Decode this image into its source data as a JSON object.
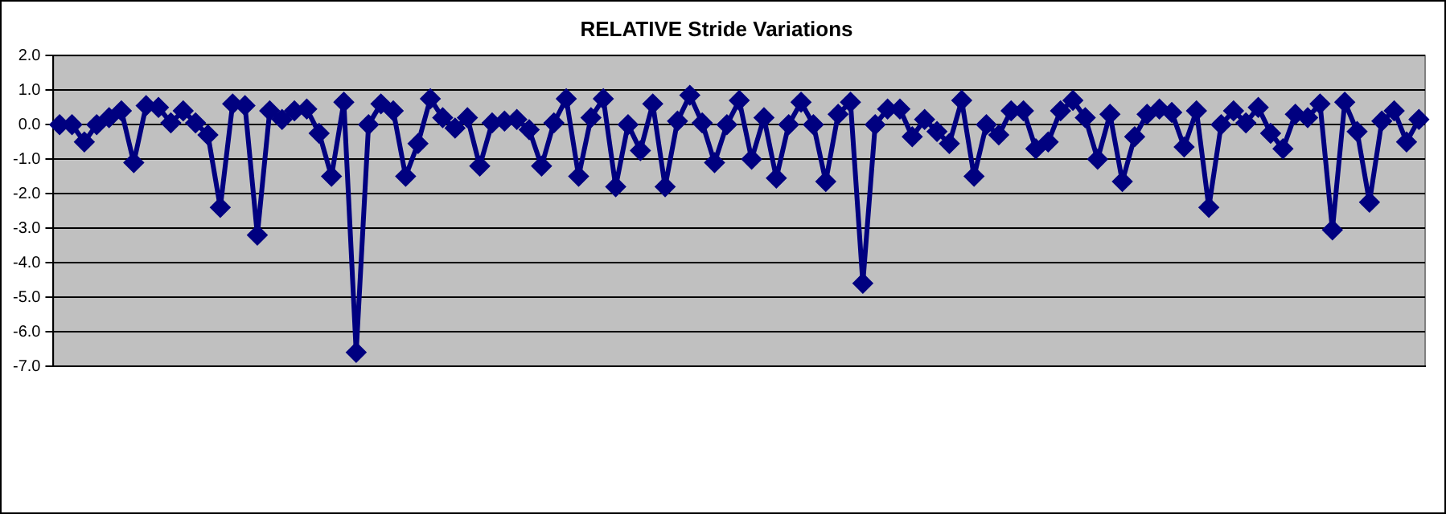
{
  "chart_data": {
    "type": "line",
    "title": "RELATIVE Stride Variations",
    "categories": [
      null,
      null,
      null,
      null,
      null,
      null,
      null,
      null,
      null,
      null,
      null,
      null,
      null,
      null,
      null,
      null,
      null,
      null,
      null,
      null,
      null,
      null,
      null,
      null,
      null,
      null,
      null,
      null,
      null,
      null,
      null,
      null,
      null,
      null,
      null,
      null,
      null,
      null,
      null,
      null,
      null,
      null,
      null,
      null,
      null,
      null,
      null,
      null,
      null,
      null,
      null,
      null,
      null,
      null,
      null,
      null,
      null,
      null,
      null,
      null,
      null,
      null,
      null,
      null,
      null,
      null,
      null,
      null,
      null,
      null,
      null,
      null,
      null,
      null,
      null,
      null,
      null,
      null,
      null,
      null,
      null,
      null,
      null,
      null,
      null,
      null,
      null,
      null,
      null,
      null,
      null,
      null,
      null,
      null,
      null,
      null,
      null,
      null,
      null,
      null,
      null,
      null,
      null,
      null,
      null,
      null,
      null,
      null,
      null,
      null,
      null
    ],
    "series": [
      {
        "color": "#000080",
        "values": [
          0.0,
          0.0,
          -0.5,
          0.0,
          0.2,
          0.4,
          -1.1,
          0.55,
          0.5,
          0.05,
          0.4,
          0.05,
          -0.3,
          -2.4,
          0.6,
          0.55,
          -3.2,
          0.4,
          0.15,
          0.4,
          0.45,
          -0.25,
          -1.5,
          0.65,
          -6.6,
          0.0,
          0.6,
          0.4,
          -1.5,
          -0.55,
          0.75,
          0.2,
          -0.1,
          0.2,
          -1.2,
          0.05,
          0.1,
          0.15,
          -0.15,
          -1.2,
          0.05,
          0.75,
          -1.5,
          0.2,
          0.75,
          -1.8,
          0.0,
          -0.75,
          0.6,
          -1.8,
          0.1,
          0.85,
          0.05,
          -1.1,
          0.0,
          0.7,
          -1.0,
          0.2,
          -1.55,
          0.0,
          0.65,
          0.0,
          -1.65,
          0.3,
          0.65,
          -4.6,
          0.0,
          0.45,
          0.45,
          -0.35,
          0.15,
          -0.2,
          -0.55,
          0.7,
          -1.5,
          0.0,
          -0.3,
          0.4,
          0.4,
          -0.7,
          -0.5,
          0.4,
          0.7,
          0.2,
          -1.0,
          0.3,
          -1.65,
          -0.35,
          0.3,
          0.45,
          0.35,
          -0.65,
          0.4,
          -2.4,
          0.0,
          0.4,
          0.05,
          0.5,
          -0.25,
          -0.7,
          0.3,
          0.2,
          0.6,
          -3.05,
          0.65,
          -0.2,
          -2.25,
          0.1,
          0.4,
          -0.5,
          0.15
        ]
      }
    ],
    "ylim": [
      -7,
      2
    ],
    "yticks": [
      {
        "value": 2,
        "label": "2.0"
      },
      {
        "value": 1,
        "label": "1.0"
      },
      {
        "value": 0,
        "label": "0.0"
      },
      {
        "value": -1,
        "label": "-1.0"
      },
      {
        "value": -2,
        "label": "-2.0"
      },
      {
        "value": -3,
        "label": "-3.0"
      },
      {
        "value": -4,
        "label": "-4.0"
      },
      {
        "value": -5,
        "label": "-5.0"
      },
      {
        "value": -6,
        "label": "-6.0"
      },
      {
        "value": -7,
        "label": "-7.0"
      }
    ],
    "grid": "y",
    "legend": false,
    "marker": "diamond",
    "line_style": "solid"
  }
}
